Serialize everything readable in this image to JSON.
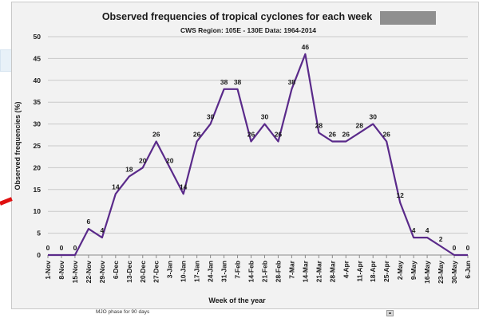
{
  "page": {
    "footer_text": "MJO phase for 90 days"
  },
  "chart_data": {
    "type": "line",
    "title": "Observed frequencies of tropical cyclones for each week",
    "subtitle": "CWS Region: 105E - 130E   Data: 1964-2014",
    "xlabel": "Week of the year",
    "ylabel": "Observed frequencies (%)",
    "ylim": [
      0,
      50
    ],
    "yticks": [
      0,
      5,
      10,
      15,
      20,
      25,
      30,
      35,
      40,
      45,
      50
    ],
    "grid": true,
    "line_color": "#5a2a8a",
    "categories": [
      "1-Nov",
      "8-Nov",
      "15-Nov",
      "22-Nov",
      "29-Nov",
      "6-Dec",
      "13-Dec",
      "20-Dec",
      "27-Dec",
      "3-Jan",
      "10-Jan",
      "17-Jan",
      "24-Jan",
      "31-Jan",
      "7-Feb",
      "14-Feb",
      "21-Feb",
      "28-Feb",
      "7-Mar",
      "14-Mar",
      "21-Mar",
      "28-Mar",
      "4-Apr",
      "11-Apr",
      "18-Apr",
      "25-Apr",
      "2-May",
      "9-May",
      "16-May",
      "23-May",
      "30-May",
      "6-Jun"
    ],
    "values": [
      0,
      0,
      0,
      6,
      4,
      14,
      18,
      20,
      26,
      20,
      14,
      26,
      30,
      38,
      38,
      26,
      30,
      26,
      38,
      46,
      28,
      26,
      26,
      28,
      30,
      26,
      12,
      4,
      4,
      2,
      0,
      0
    ],
    "data_labels": [
      "0",
      "0",
      "0",
      "6",
      "4",
      "14",
      "18",
      "20",
      "26",
      "20",
      "14",
      "26",
      "30",
      "38",
      "38",
      "26",
      "30",
      "26",
      "38",
      "46",
      "28",
      "26",
      "26",
      "28",
      "30",
      "26",
      "12",
      "4",
      "4",
      "2",
      "0",
      "0"
    ]
  }
}
